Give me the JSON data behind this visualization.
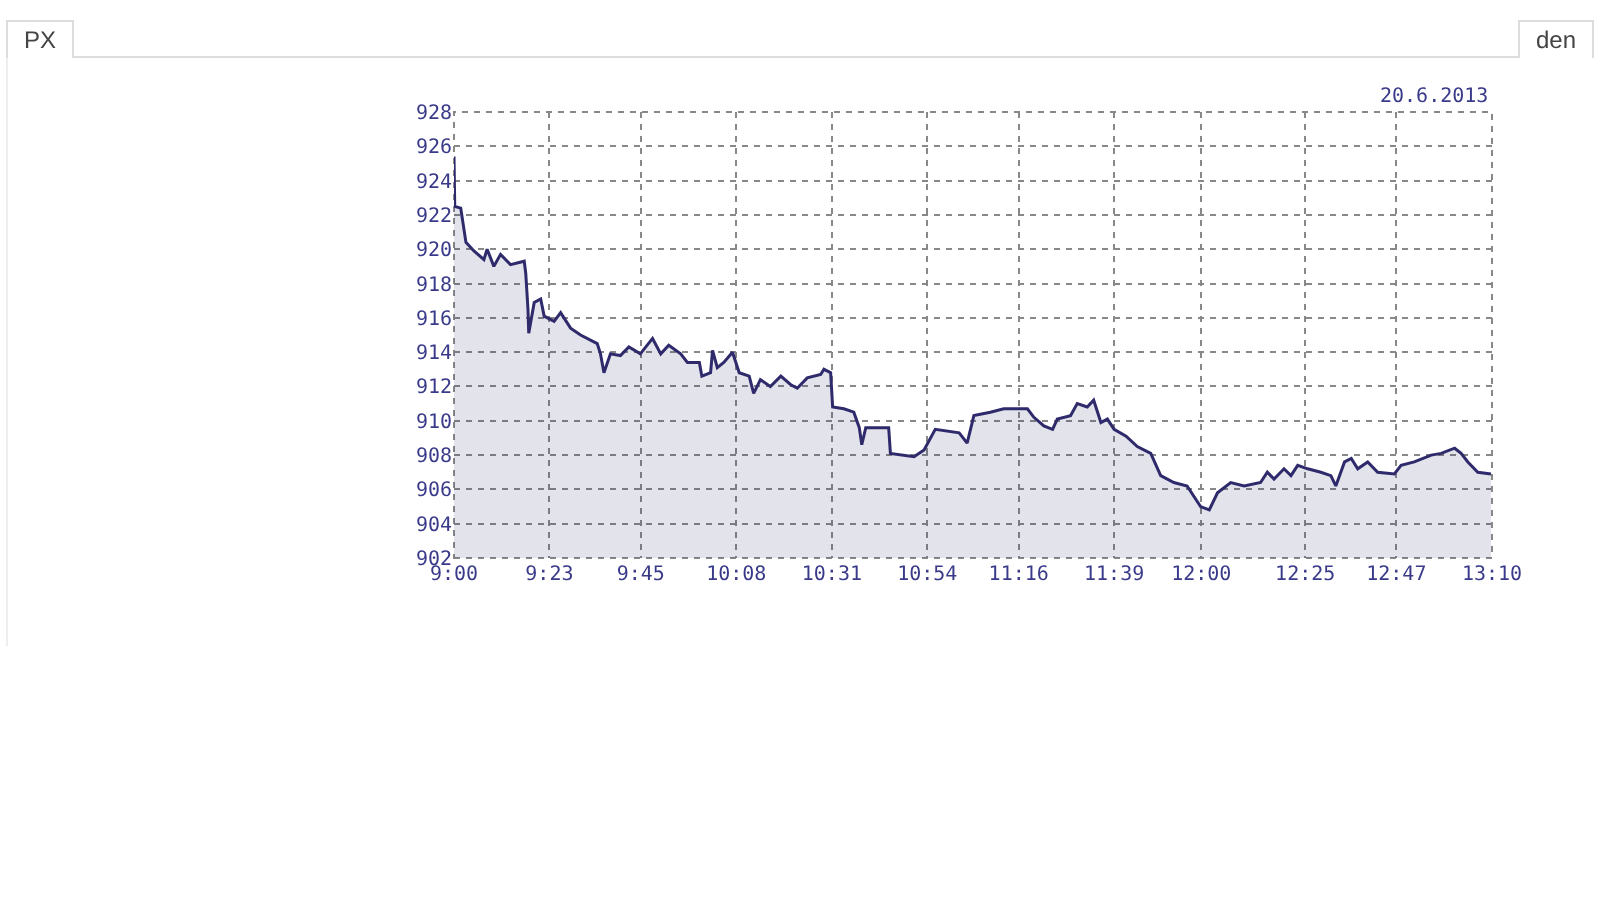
{
  "chart_data": {
    "type": "area",
    "annotations": [
      "PX",
      "den",
      "20.6.2013"
    ],
    "x": [
      9.0,
      9.003,
      9.027,
      9.048,
      9.08,
      9.12,
      9.133,
      9.16,
      9.187,
      9.227,
      9.282,
      9.288,
      9.297,
      9.3,
      9.322,
      9.348,
      9.362,
      9.402,
      9.428,
      9.468,
      9.508,
      9.575,
      9.588,
      9.602,
      9.628,
      9.668,
      9.702,
      9.748,
      9.797,
      9.83,
      9.862,
      9.91,
      9.937,
      9.985,
      9.995,
      10.03,
      10.038,
      10.057,
      10.083,
      10.118,
      10.145,
      10.185,
      10.203,
      10.23,
      10.27,
      10.312,
      10.352,
      10.378,
      10.418,
      10.472,
      10.485,
      10.512,
      10.52,
      10.565,
      10.605,
      10.627,
      10.637,
      10.653,
      10.745,
      10.752,
      10.847,
      10.887,
      10.932,
      11.028,
      11.06,
      11.087,
      11.153,
      11.207,
      11.302,
      11.328,
      11.368,
      11.403,
      11.422,
      11.475,
      11.502,
      11.542,
      11.568,
      11.597,
      11.623,
      11.65,
      11.698,
      11.743,
      11.797,
      11.837,
      11.89,
      11.943,
      11.97,
      11.997,
      12.032,
      12.065,
      12.118,
      12.172,
      12.238,
      12.265,
      12.292,
      12.332,
      12.36,
      12.387,
      12.427,
      12.48,
      12.52,
      12.54,
      12.575,
      12.602,
      12.628,
      12.668,
      12.708,
      12.775,
      12.802,
      12.855,
      12.923,
      12.963,
      13.017,
      13.043,
      13.07,
      13.11,
      13.163
    ],
    "series": [
      {
        "color": "#2e2a6b",
        "values": [
          925.4,
          922.5,
          922.4,
          920.4,
          919.9,
          919.4,
          920.0,
          919.0,
          919.7,
          919.1,
          919.3,
          918.6,
          916.5,
          915.1,
          916.9,
          917.1,
          916.1,
          915.8,
          916.3,
          915.4,
          915.0,
          914.5,
          913.9,
          912.8,
          913.9,
          913.8,
          914.3,
          913.9,
          914.8,
          913.9,
          914.4,
          913.9,
          913.4,
          913.4,
          912.6,
          912.8,
          914.1,
          913.1,
          913.4,
          914.0,
          912.8,
          912.6,
          911.6,
          912.4,
          912.0,
          912.6,
          912.1,
          911.9,
          912.5,
          912.7,
          913.0,
          912.8,
          910.8,
          910.7,
          910.5,
          909.6,
          908.6,
          909.6,
          909.6,
          908.1,
          907.9,
          908.3,
          909.5,
          909.3,
          908.7,
          910.3,
          910.5,
          910.7,
          910.7,
          910.2,
          909.7,
          909.5,
          910.1,
          910.3,
          911.0,
          910.8,
          911.2,
          909.9,
          910.1,
          909.5,
          909.1,
          908.5,
          908.1,
          906.8,
          906.4,
          906.2,
          905.6,
          905.0,
          904.8,
          905.8,
          906.4,
          906.2,
          906.4,
          907.0,
          906.6,
          907.2,
          906.8,
          907.4,
          907.2,
          907.0,
          906.8,
          906.2,
          907.6,
          907.8,
          907.2,
          907.6,
          907.0,
          906.9,
          907.4,
          907.6,
          908.0,
          908.1,
          908.4,
          908.1,
          907.6,
          907.0,
          906.9
        ]
      }
    ],
    "xlim": [
      9,
      13.167
    ],
    "xticks": [
      {
        "value": 9,
        "label": "9:00"
      },
      {
        "value": 9.383,
        "label": "9:23"
      },
      {
        "value": 9.75,
        "label": "9:45"
      },
      {
        "value": 10.133,
        "label": "10:08"
      },
      {
        "value": 10.517,
        "label": "10:31"
      },
      {
        "value": 10.9,
        "label": "10:54"
      },
      {
        "value": 11.267,
        "label": "11:16"
      },
      {
        "value": 11.65,
        "label": "11:39"
      },
      {
        "value": 12,
        "label": "12:00"
      },
      {
        "value": 12.417,
        "label": "12:25"
      },
      {
        "value": 12.783,
        "label": "12:47"
      },
      {
        "value": 13.167,
        "label": "13:10"
      }
    ],
    "ylim": [
      902,
      928
    ],
    "yticks": [
      902,
      904,
      906,
      908,
      910,
      912,
      914,
      916,
      918,
      920,
      922,
      924,
      926,
      928
    ],
    "grid": true,
    "marker": "none",
    "line_style": "solid"
  }
}
